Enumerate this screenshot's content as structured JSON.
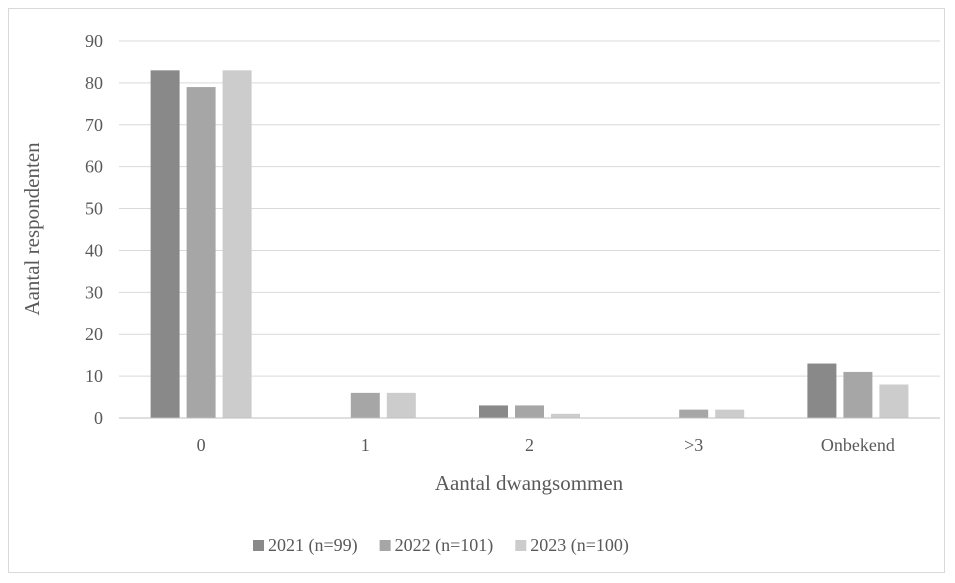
{
  "chart_data": {
    "type": "bar",
    "xlabel": "Aantal dwangsommen",
    "ylabel": "Aantal respondenten",
    "categories": [
      "0",
      "1",
      "2",
      ">3",
      "Onbekend"
    ],
    "ylim": [
      0,
      90
    ],
    "yticks": [
      0,
      10,
      20,
      30,
      40,
      50,
      60,
      70,
      80,
      90
    ],
    "grid": true,
    "legend_position": "bottom",
    "series": [
      {
        "name": "2021 (n=99)",
        "color": "#898989",
        "values": [
          83,
          0,
          3,
          0,
          13
        ]
      },
      {
        "name": "2022 (n=101)",
        "color": "#a6a6a6",
        "values": [
          79,
          6,
          3,
          2,
          11
        ]
      },
      {
        "name": "2023 (n=100)",
        "color": "#cccccc",
        "values": [
          83,
          6,
          1,
          2,
          8
        ]
      }
    ]
  }
}
